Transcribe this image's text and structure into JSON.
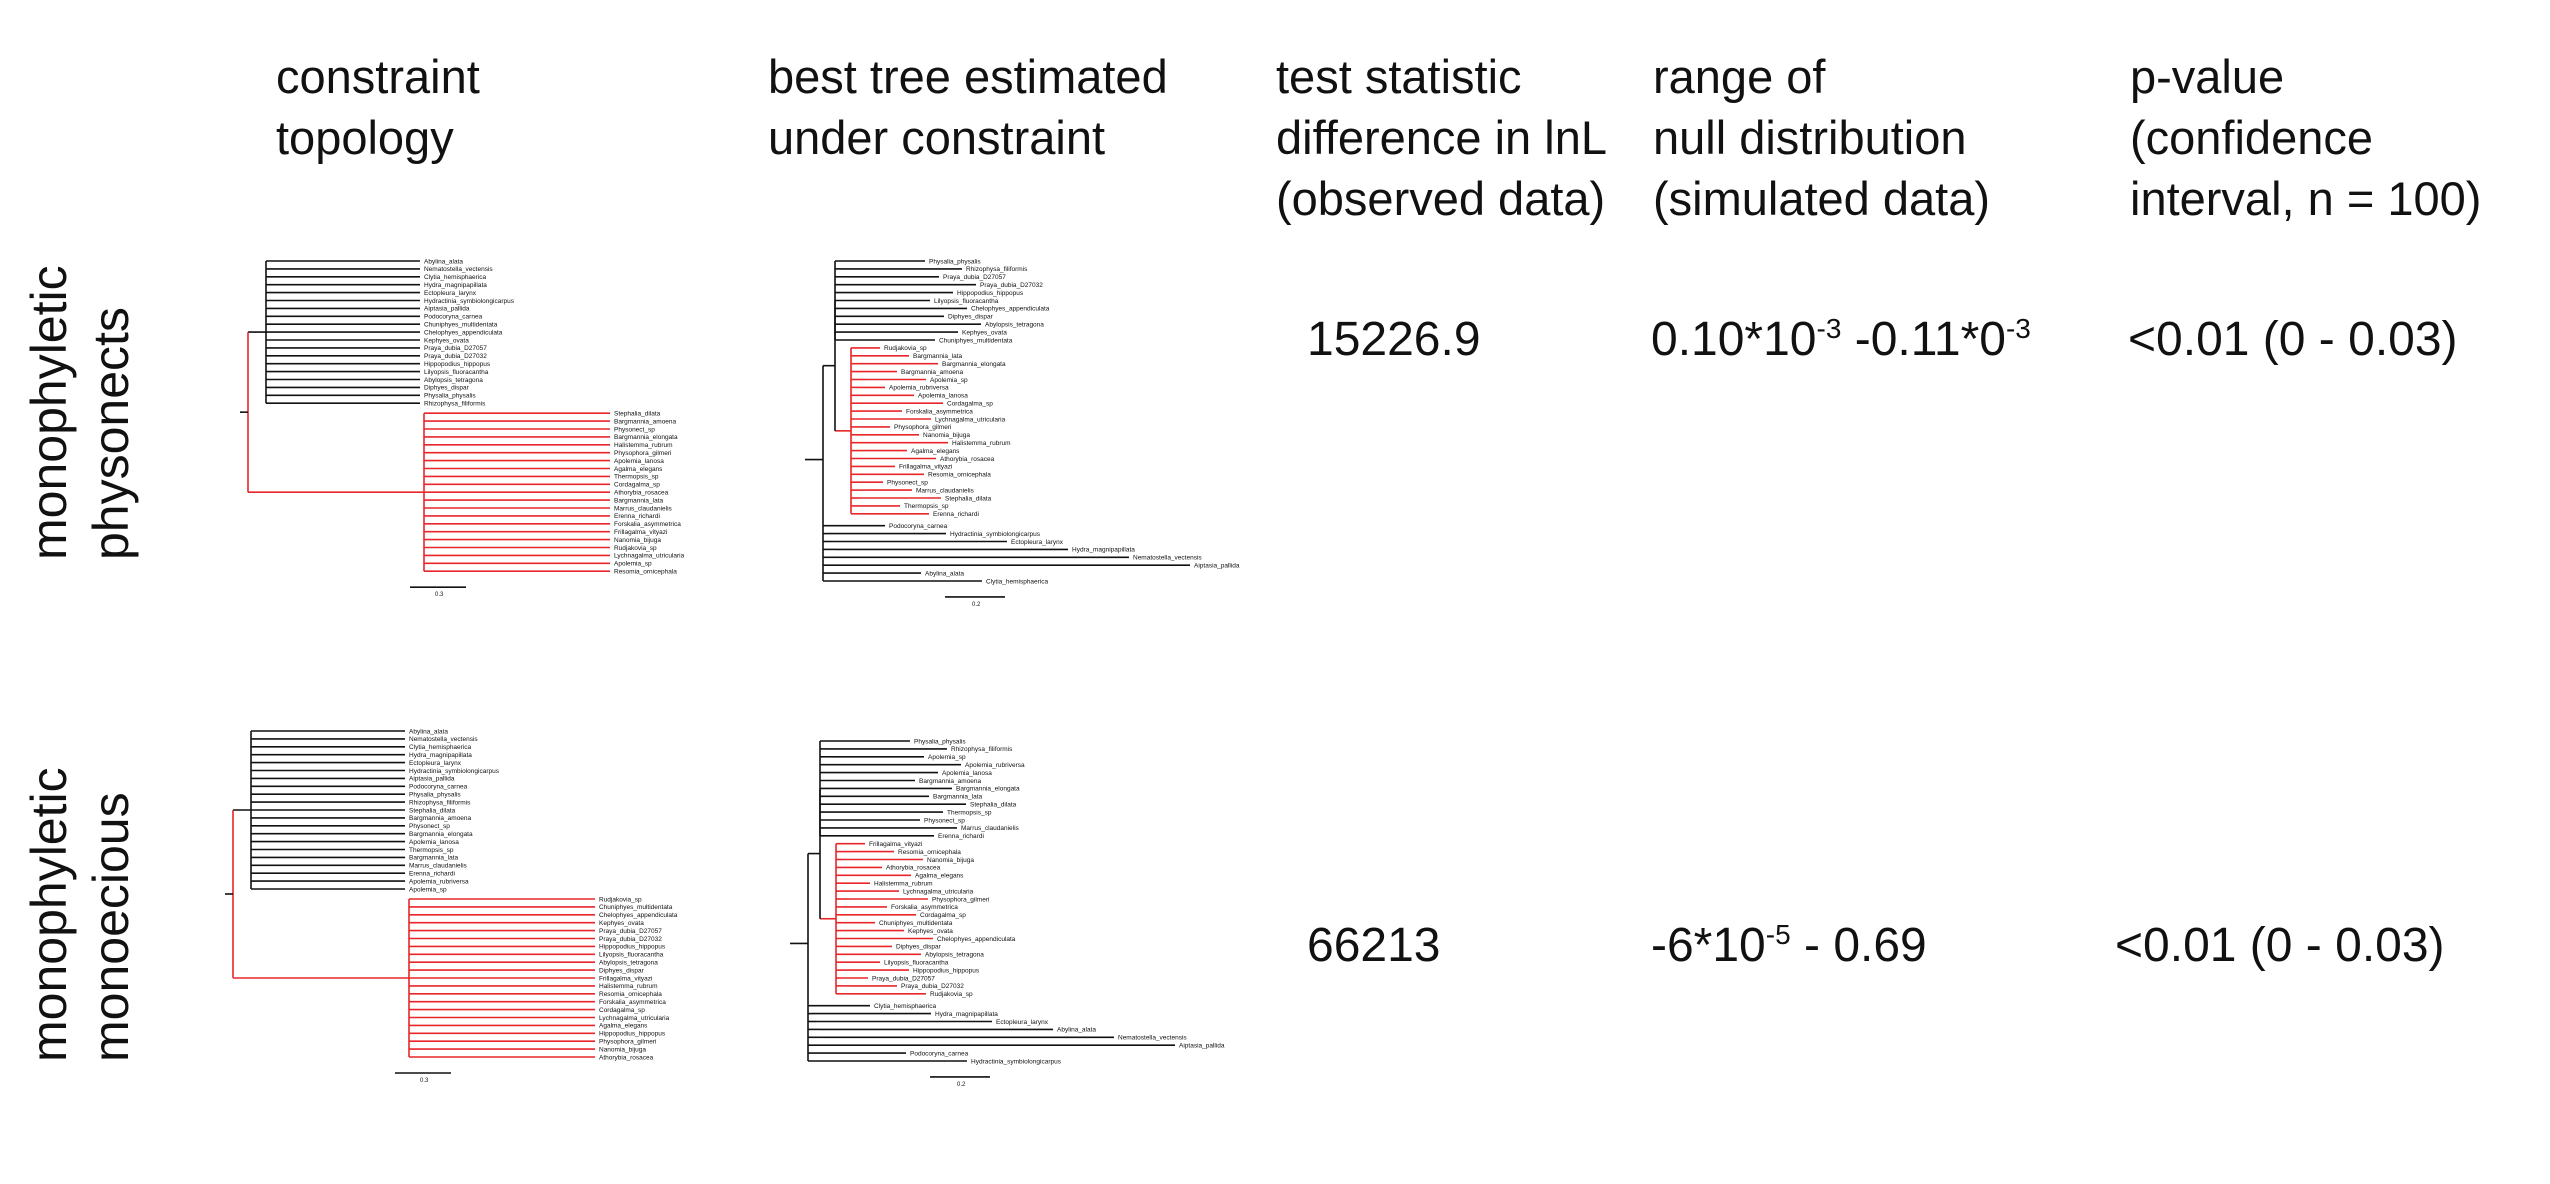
{
  "headers": {
    "constraint": "constraint\ntopology",
    "best_tree": "best tree estimated\nunder constraint",
    "test_statistic": "test statistic\ndifference in lnL\n(observed data)",
    "range": "range of\nnull distribution\n(simulated data)",
    "pvalue": "p-value\n(confidence\ninterval, n = 100)"
  },
  "rows": [
    {
      "label": "monophyletic\nphysonects",
      "test_statistic": "15226.9",
      "range_parts": [
        "0.10*10",
        "-3",
        " -0.11*0",
        "-3"
      ],
      "pvalue": "<0.01 (0 - 0.03)",
      "constraint_scale": "0.3",
      "best_scale": "0.2",
      "constraint_black_taxa": [
        "Abylina_alata",
        "Nematostella_vectensis",
        "Clytia_hemisphaerica",
        "Hydra_magnipapillata",
        "Ectopleura_larynx",
        "Hydractinia_symbiolongicarpus",
        "Aiptasia_pallida",
        "Podocoryna_carnea",
        "Chuniphyes_multidentata",
        "Chelophyes_appendiculata",
        "Kephyes_ovata",
        "Praya_dubia_D27057",
        "Praya_dubia_D27032",
        "Hippopodius_hippopus",
        "Lilyopsis_fluoracantha",
        "Abylopsis_tetragona",
        "Diphyes_dispar",
        "Physalia_physalis",
        "Rhizophysa_filiformis"
      ],
      "constraint_red_taxa": [
        "Stephalia_dilata",
        "Bargmannia_amoena",
        "Physonect_sp",
        "Bargmannia_elongata",
        "Halistemma_rubrum",
        "Physophora_gilmeri",
        "Apolemia_lanosa",
        "Agalma_elegans",
        "Thermopsis_sp",
        "Cordagalma_sp",
        "Athorybia_rosacea",
        "Bargmannia_lata",
        "Marrus_claudanielis",
        "Erenna_richardi",
        "Forskalia_asymmetrica",
        "Frillagalma_vityazi",
        "Nanomia_bijuga",
        "Rudjakovia_sp",
        "Lychnagalma_utricularia",
        "Apolemia_sp",
        "Resomia_ornicephala"
      ],
      "best_black_taxa": [
        "Physalia_physalis",
        "Rhizophysa_filiformis",
        "Praya_dubia_D27057",
        "Praya_dubia_D27032",
        "Hippopodius_hippopus",
        "Lilyopsis_fluoracantha",
        "Chelophyes_appendiculata",
        "Diphyes_dispar",
        "Abylopsis_tetragona",
        "Kephyes_ovata",
        "Chuniphyes_multidentata",
        "Podocoryna_carnea",
        "Hydractinia_symbiolongicarpus",
        "Ectopleura_larynx",
        "Hydra_magnipapillata",
        "Nematostella_vectensis",
        "Aiptasia_pallida",
        "Abylina_alata",
        "Clytia_hemisphaerica"
      ],
      "best_red_taxa": [
        "Rudjakovia_sp",
        "Bargmannia_lata",
        "Bargmannia_elongata",
        "Bargmannia_amoena",
        "Apolemia_sp",
        "Apolemia_rubriversa",
        "Apolemia_lanosa",
        "Cordagalma_sp",
        "Forskalia_asymmetrica",
        "Lychnagalma_utricularia",
        "Physophora_gilmeri",
        "Nanomia_bijuga",
        "Halistemma_rubrum",
        "Agalma_elegans",
        "Athorybia_rosacea",
        "Frillagalma_vityazi",
        "Resomia_ornicephala",
        "Physonect_sp",
        "Marrus_claudanielis",
        "Stephalia_dilata",
        "Thermopsis_sp",
        "Erenna_richardi"
      ]
    },
    {
      "label": "monophyletic\nmonoecious",
      "test_statistic": "66213",
      "range_parts": [
        "-6*10",
        "-5",
        " - 0.69",
        ""
      ],
      "pvalue": "<0.01 (0 - 0.03)",
      "constraint_scale": "0.3",
      "best_scale": "0.2",
      "constraint_black_taxa": [
        "Abylina_alata",
        "Nematostella_vectensis",
        "Clytia_hemisphaerica",
        "Hydra_magnipapillata",
        "Ectopleura_larynx",
        "Hydractinia_symbiolongicarpus",
        "Aiptasia_pallida",
        "Podocoryna_carnea",
        "Physalia_physalis",
        "Rhizophysa_filiformis",
        "Stephalia_dilata",
        "Bargmannia_amoena",
        "Physonect_sp",
        "Bargmannia_elongata",
        "Apolemia_lanosa",
        "Thermopsis_sp",
        "Bargmannia_lata",
        "Marrus_claudanielis",
        "Erenna_richardi",
        "Apolemia_rubriversa",
        "Apolemia_sp"
      ],
      "constraint_red_taxa": [
        "Rudjakovia_sp",
        "Chuniphyes_multidentata",
        "Chelophyes_appendiculata",
        "Kephyes_ovata",
        "Praya_dubia_D27057",
        "Praya_dubia_D27032",
        "Hippopodius_hippopus",
        "Lilyopsis_fluoracantha",
        "Abylopsis_tetragona",
        "Diphyes_dispar",
        "Frillagalma_vityazi",
        "Halistemma_rubrum",
        "Resomia_ornicephala",
        "Forskalia_asymmetrica",
        "Cordagalma_sp",
        "Lychnagalma_utricularia",
        "Agalma_elegans",
        "Hippopodius_hippopus",
        "Physophora_gilmeri",
        "Nanomia_bijuga",
        "Athorybia_rosacea"
      ],
      "best_black_taxa": [
        "Physalia_physalis",
        "Rhizophysa_filiformis",
        "Apolemia_sp",
        "Apolemia_rubriversa",
        "Apolemia_lanosa",
        "Bargmannia_amoena",
        "Bargmannia_elongata",
        "Bargmannia_lata",
        "Stephalia_dilata",
        "Thermopsis_sp",
        "Physonect_sp",
        "Marrus_claudanielis",
        "Erenna_richardi",
        "Clytia_hemisphaerica",
        "Hydra_magnipapillata",
        "Ectopleura_larynx",
        "Abylina_alata",
        "Nematostella_vectensis",
        "Aiptasia_pallida",
        "Podocoryna_carnea",
        "Hydractinia_symbiolongicarpus"
      ],
      "best_red_taxa": [
        "Frillagalma_vityazi",
        "Resomia_ornicephala",
        "Nanomia_bijuga",
        "Athorybia_rosacea",
        "Agalma_elegans",
        "Halistemma_rubrum",
        "Lychnagalma_utricularia",
        "Physophora_gilmeri",
        "Forskalia_asymmetrica",
        "Cordagalma_sp",
        "Chuniphyes_multidentata",
        "Kephyes_ovata",
        "Chelophyes_appendiculata",
        "Diphyes_dispar",
        "Abylopsis_tetragona",
        "Lilyopsis_fluoracantha",
        "Hippopodius_hippopus",
        "Praya_dubia_D27057",
        "Praya_dubia_D27032",
        "Rudjakovia_sp"
      ]
    }
  ],
  "colors": {
    "constrained_clade": "#e8262a",
    "other": "#111111"
  }
}
